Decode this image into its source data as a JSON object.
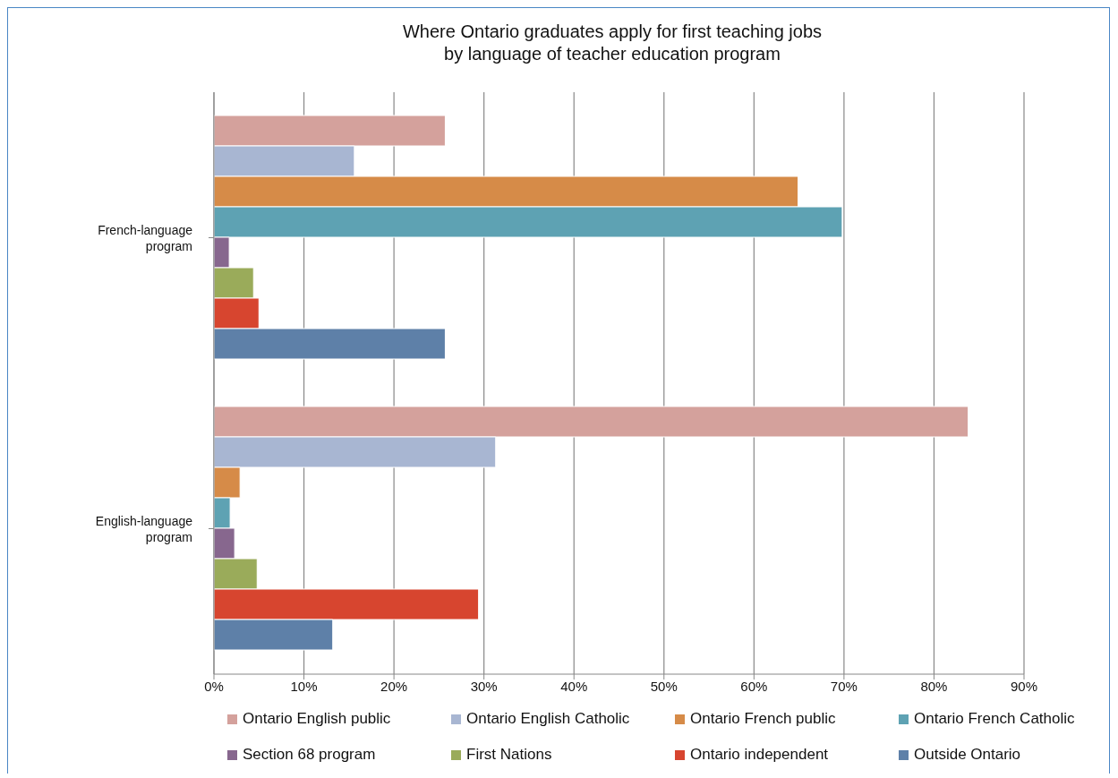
{
  "chart_data": {
    "type": "bar",
    "orientation": "horizontal",
    "title": "Where Ontario graduates apply for first teaching jobs\nby language of teacher education program",
    "categories": [
      "French-language program",
      "English-language program"
    ],
    "series": [
      {
        "name": "Ontario English public",
        "color": "#d4a19c",
        "values": [
          25.7,
          83.8
        ]
      },
      {
        "name": "Ontario English Catholic",
        "color": "#a8b6d2",
        "values": [
          15.6,
          31.3
        ]
      },
      {
        "name": "Ontario French public",
        "color": "#d68b48",
        "values": [
          64.9,
          2.9
        ]
      },
      {
        "name": "Ontario French Catholic",
        "color": "#5ea2b3",
        "values": [
          69.8,
          1.8
        ]
      },
      {
        "name": "Section 68 program",
        "color": "#87678e",
        "values": [
          1.7,
          2.3
        ]
      },
      {
        "name": "First Nations",
        "color": "#9aab5a",
        "values": [
          4.4,
          4.8
        ]
      },
      {
        "name": "Ontario independent",
        "color": "#d7452f",
        "values": [
          5.0,
          29.4
        ]
      },
      {
        "name": "Outside Ontario",
        "color": "#5e80a8",
        "values": [
          25.7,
          13.2
        ]
      }
    ],
    "xlim": [
      0,
      90
    ],
    "xticks": [
      {
        "value": 0,
        "label": "0%"
      },
      {
        "value": 10,
        "label": "10%"
      },
      {
        "value": 20,
        "label": "20%"
      },
      {
        "value": 30,
        "label": "30%"
      },
      {
        "value": 40,
        "label": "40%"
      },
      {
        "value": 50,
        "label": "50%"
      },
      {
        "value": 60,
        "label": "60%"
      },
      {
        "value": 70,
        "label": "70%"
      },
      {
        "value": 80,
        "label": "80%"
      },
      {
        "value": 90,
        "label": "90%"
      }
    ],
    "grid": "x",
    "legend": "bottom"
  }
}
